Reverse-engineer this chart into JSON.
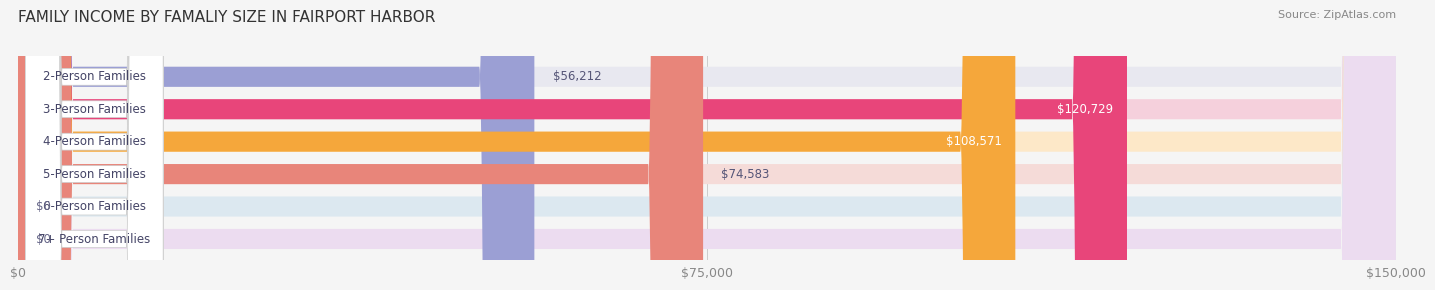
{
  "title": "FAMILY INCOME BY FAMALIY SIZE IN FAIRPORT HARBOR",
  "source": "Source: ZipAtlas.com",
  "categories": [
    "2-Person Families",
    "3-Person Families",
    "4-Person Families",
    "5-Person Families",
    "6-Person Families",
    "7+ Person Families"
  ],
  "values": [
    56212,
    120729,
    108571,
    74583,
    0,
    0
  ],
  "bar_colors": [
    "#9b9fd4",
    "#e8457a",
    "#f5a73b",
    "#e8857a",
    "#8aadd4",
    "#c3a8d1"
  ],
  "bar_bg_colors": [
    "#e8e8f0",
    "#f5d0dc",
    "#fde8c8",
    "#f5dbd8",
    "#dce8f0",
    "#ecdcf0"
  ],
  "label_colors": [
    "#555577",
    "#ffffff",
    "#ffffff",
    "#555577",
    "#555577",
    "#555577"
  ],
  "xlim": [
    0,
    150000
  ],
  "xticks": [
    0,
    75000,
    150000
  ],
  "xticklabels": [
    "$0",
    "$75,000",
    "$150,000"
  ],
  "background_color": "#f5f5f5",
  "bar_height": 0.62,
  "title_fontsize": 11,
  "label_fontsize": 8.5,
  "tick_fontsize": 9,
  "source_fontsize": 8
}
